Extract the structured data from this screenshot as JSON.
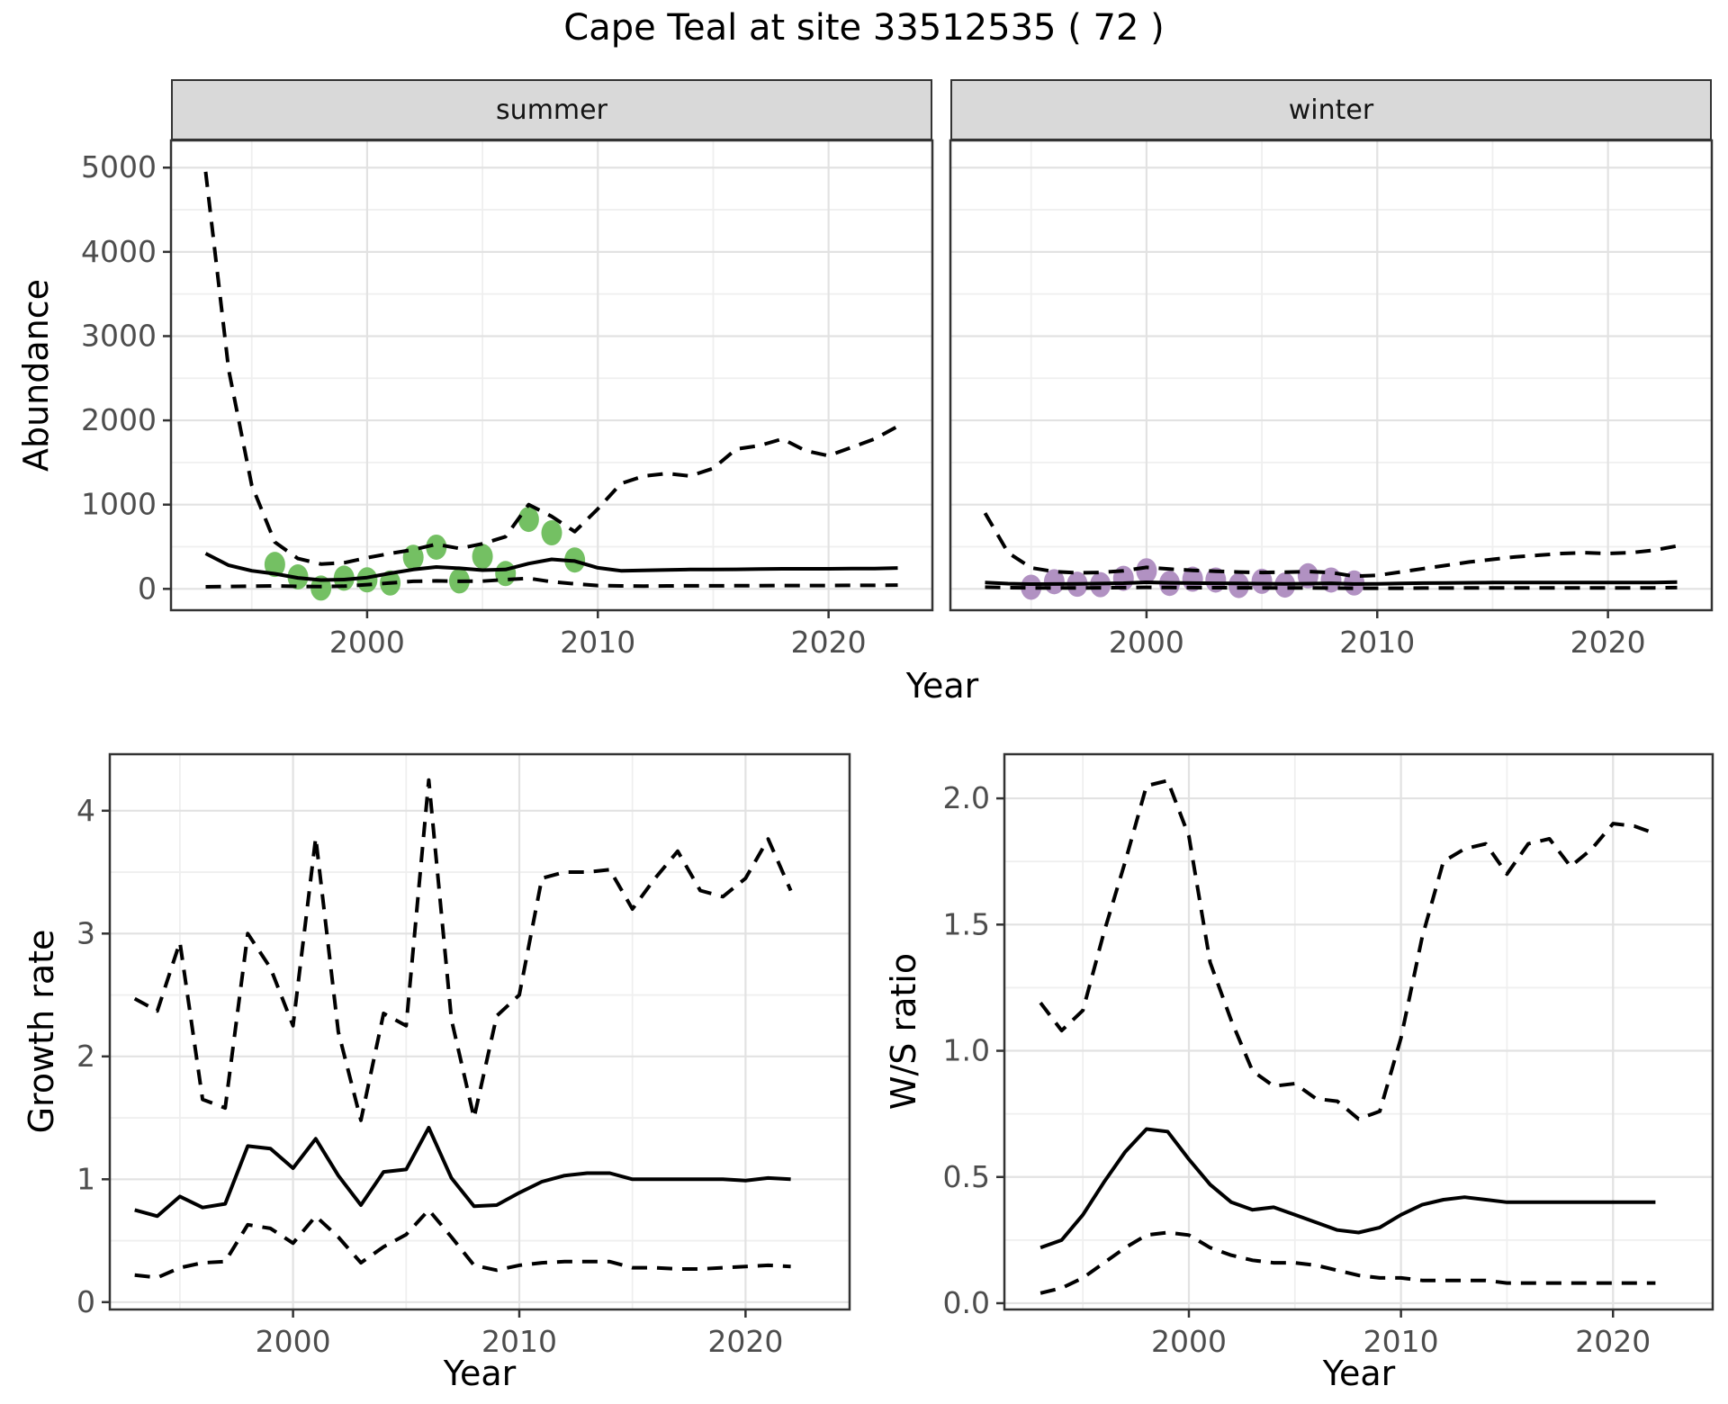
{
  "title": "Cape Teal at site 33512535 ( 72 )",
  "facets": [
    {
      "label": "summer"
    },
    {
      "label": "winter"
    }
  ],
  "axis_titles": {
    "abundance": "Abundance",
    "year": "Year",
    "growth": "Growth rate",
    "ws": "W/S ratio"
  },
  "colors": {
    "summer_points": "#74C063",
    "winter_points": "#B191C2",
    "line": "#000000",
    "panel_border": "#333333",
    "strip_bg": "#D9D9D9",
    "grid_major": "#E2E2E2",
    "grid_minor": "#EFEFEF",
    "tick_text": "#4D4D4D"
  },
  "chart_data": [
    {
      "id": "abundance-summer",
      "type": "line",
      "facet": "summer",
      "title": "summer",
      "xlabel": "Year",
      "ylabel": "Abundance",
      "xlim": [
        1991.5,
        2024.5
      ],
      "ylim": [
        -253,
        5323
      ],
      "xticks": [
        2000,
        2010,
        2020
      ],
      "xtick_labels": [
        "2000",
        "2010",
        "2020"
      ],
      "yticks": [
        0,
        1000,
        2000,
        3000,
        4000,
        5000
      ],
      "ytick_labels": [
        "0",
        "1000",
        "2000",
        "3000",
        "4000",
        "5000"
      ],
      "x_minor": [
        1995,
        2005,
        2015
      ],
      "y_minor": [
        500,
        1500,
        2500,
        3500,
        4500
      ],
      "grid": true,
      "legend": "none",
      "x": [
        1993,
        1994,
        1995,
        1996,
        1997,
        1998,
        1999,
        2000,
        2001,
        2002,
        2003,
        2004,
        2005,
        2006,
        2007,
        2008,
        2009,
        2010,
        2011,
        2012,
        2013,
        2014,
        2015,
        2016,
        2017,
        2018,
        2019,
        2020,
        2021,
        2022,
        2023
      ],
      "series": [
        {
          "name": "mean",
          "style": "solid",
          "values": [
            420,
            280,
            215,
            180,
            130,
            105,
            110,
            135,
            185,
            230,
            260,
            245,
            222,
            230,
            300,
            350,
            330,
            250,
            215,
            220,
            225,
            230,
            230,
            232,
            235,
            238,
            238,
            238,
            240,
            240,
            248
          ]
        },
        {
          "name": "upper_ci",
          "style": "dashed",
          "values": [
            4950,
            2600,
            1230,
            555,
            360,
            295,
            310,
            370,
            420,
            465,
            530,
            480,
            535,
            620,
            1000,
            860,
            680,
            950,
            1250,
            1340,
            1370,
            1340,
            1430,
            1660,
            1700,
            1780,
            1640,
            1580,
            1680,
            1780,
            1930
          ]
        },
        {
          "name": "lower_ci",
          "style": "dashed",
          "values": [
            25,
            28,
            32,
            35,
            30,
            28,
            32,
            50,
            70,
            90,
            95,
            90,
            92,
            110,
            125,
            85,
            60,
            40,
            35,
            33,
            35,
            36,
            36,
            38,
            38,
            40,
            40,
            40,
            42,
            42,
            45
          ]
        }
      ],
      "points": {
        "color_key": "summer_points",
        "x": [
          1996,
          1997,
          1998,
          1999,
          2000,
          2001,
          2002,
          2003,
          2004,
          2005,
          2006,
          2007,
          2008,
          2009
        ],
        "y": [
          290,
          142,
          10,
          127,
          107,
          70,
          375,
          495,
          95,
          385,
          182,
          825,
          665,
          343
        ]
      }
    },
    {
      "id": "abundance-winter",
      "type": "line",
      "facet": "winter",
      "title": "winter",
      "xlabel": "Year",
      "ylabel": "Abundance",
      "xlim": [
        1991.5,
        2024.5
      ],
      "ylim": [
        -253,
        5323
      ],
      "xticks": [
        2000,
        2010,
        2020
      ],
      "xtick_labels": [
        "2000",
        "2010",
        "2020"
      ],
      "yticks": [
        0,
        1000,
        2000,
        3000,
        4000,
        5000
      ],
      "ytick_labels": [
        "0",
        "1000",
        "2000",
        "3000",
        "4000",
        "5000"
      ],
      "x_minor": [
        1995,
        2005,
        2015
      ],
      "y_minor": [
        500,
        1500,
        2500,
        3500,
        4500
      ],
      "grid": true,
      "legend": "none",
      "x": [
        1993,
        1994,
        1995,
        1996,
        1997,
        1998,
        1999,
        2000,
        2001,
        2002,
        2003,
        2004,
        2005,
        2006,
        2007,
        2008,
        2009,
        2010,
        2011,
        2012,
        2013,
        2014,
        2015,
        2016,
        2017,
        2018,
        2019,
        2020,
        2021,
        2022,
        2023
      ],
      "series": [
        {
          "name": "mean",
          "style": "solid",
          "values": [
            75,
            62,
            57,
            58,
            60,
            63,
            67,
            78,
            72,
            68,
            66,
            64,
            62,
            60,
            62,
            66,
            58,
            60,
            64,
            68,
            71,
            73,
            75,
            75,
            76,
            76,
            76,
            76,
            76,
            76,
            80
          ]
        },
        {
          "name": "upper_ci",
          "style": "dashed",
          "values": [
            900,
            430,
            250,
            205,
            190,
            195,
            215,
            255,
            235,
            220,
            210,
            200,
            195,
            198,
            205,
            195,
            150,
            160,
            200,
            240,
            280,
            320,
            350,
            380,
            400,
            420,
            430,
            420,
            430,
            460,
            510
          ]
        },
        {
          "name": "lower_ci",
          "style": "dashed",
          "values": [
            20,
            14,
            12,
            11,
            11,
            13,
            15,
            18,
            16,
            15,
            14,
            13,
            12,
            12,
            12,
            10,
            8,
            8,
            8,
            10,
            10,
            12,
            12,
            12,
            12,
            12,
            12,
            12,
            12,
            12,
            15
          ]
        }
      ],
      "points": {
        "color_key": "winter_points",
        "x": [
          1995,
          1996,
          1997,
          1998,
          1999,
          2000,
          2001,
          2002,
          2003,
          2004,
          2005,
          2006,
          2007,
          2008,
          2009
        ],
        "y": [
          20,
          85,
          55,
          50,
          125,
          215,
          65,
          115,
          105,
          40,
          90,
          45,
          155,
          105,
          70
        ]
      }
    },
    {
      "id": "growth-rate",
      "type": "line",
      "xlabel": "Year",
      "ylabel": "Growth rate",
      "xlim": [
        1991.9,
        2024.6
      ],
      "ylim": [
        -0.06,
        4.46
      ],
      "xticks": [
        2000,
        2010,
        2020
      ],
      "xtick_labels": [
        "2000",
        "2010",
        "2020"
      ],
      "yticks": [
        0,
        1,
        2,
        3,
        4
      ],
      "ytick_labels": [
        "0",
        "1",
        "2",
        "3",
        "4"
      ],
      "x_minor": [
        1995,
        2005,
        2015
      ],
      "y_minor": [
        0.5,
        1.5,
        2.5,
        3.5
      ],
      "grid": true,
      "legend": "none",
      "x": [
        1993,
        1994,
        1995,
        1996,
        1997,
        1998,
        1999,
        2000,
        2001,
        2002,
        2003,
        2004,
        2005,
        2006,
        2007,
        2008,
        2009,
        2010,
        2011,
        2012,
        2013,
        2014,
        2015,
        2016,
        2017,
        2018,
        2019,
        2020,
        2021,
        2022
      ],
      "series": [
        {
          "name": "mean",
          "style": "solid",
          "values": [
            0.75,
            0.7,
            0.86,
            0.77,
            0.8,
            1.27,
            1.25,
            1.09,
            1.33,
            1.03,
            0.79,
            1.06,
            1.08,
            1.42,
            1.01,
            0.78,
            0.79,
            0.89,
            0.98,
            1.03,
            1.05,
            1.05,
            1.0,
            1.0,
            1.0,
            1.0,
            1.0,
            0.99,
            1.01,
            1.0
          ]
        },
        {
          "name": "upper_ci",
          "style": "dashed",
          "values": [
            2.47,
            2.37,
            2.93,
            1.65,
            1.58,
            3.0,
            2.72,
            2.25,
            3.78,
            2.2,
            1.48,
            2.35,
            2.25,
            4.25,
            2.3,
            1.5,
            2.33,
            2.5,
            3.45,
            3.5,
            3.5,
            3.52,
            3.2,
            3.45,
            3.67,
            3.35,
            3.3,
            3.45,
            3.77,
            3.35
          ]
        },
        {
          "name": "lower_ci",
          "style": "dashed",
          "values": [
            0.22,
            0.2,
            0.28,
            0.32,
            0.33,
            0.63,
            0.6,
            0.48,
            0.7,
            0.53,
            0.32,
            0.45,
            0.55,
            0.75,
            0.53,
            0.3,
            0.26,
            0.3,
            0.32,
            0.33,
            0.33,
            0.33,
            0.28,
            0.28,
            0.27,
            0.27,
            0.28,
            0.29,
            0.3,
            0.29
          ]
        }
      ]
    },
    {
      "id": "ws-ratio",
      "type": "line",
      "xlabel": "Year",
      "ylabel": "W/S ratio",
      "xlim": [
        1991.3,
        2024.7
      ],
      "ylim": [
        -0.025,
        2.175
      ],
      "xticks": [
        2000,
        2010,
        2020
      ],
      "xtick_labels": [
        "2000",
        "2010",
        "2020"
      ],
      "yticks": [
        0,
        0.5,
        1.0,
        1.5,
        2.0
      ],
      "ytick_labels": [
        "0.0",
        "0.5",
        "1.0",
        "1.5",
        "2.0"
      ],
      "x_minor": [
        1995,
        2005,
        2015
      ],
      "y_minor": [
        0.25,
        0.75,
        1.25,
        1.75
      ],
      "grid": true,
      "legend": "none",
      "x": [
        1993,
        1994,
        1995,
        1996,
        1997,
        1998,
        1999,
        2000,
        2001,
        2002,
        2003,
        2004,
        2005,
        2006,
        2007,
        2008,
        2009,
        2010,
        2011,
        2012,
        2013,
        2014,
        2015,
        2016,
        2017,
        2018,
        2019,
        2020,
        2021,
        2022
      ],
      "series": [
        {
          "name": "mean",
          "style": "solid",
          "values": [
            0.22,
            0.25,
            0.35,
            0.48,
            0.6,
            0.69,
            0.68,
            0.57,
            0.47,
            0.4,
            0.37,
            0.38,
            0.35,
            0.32,
            0.29,
            0.28,
            0.3,
            0.35,
            0.39,
            0.41,
            0.42,
            0.41,
            0.4,
            0.4,
            0.4,
            0.4,
            0.4,
            0.4,
            0.4,
            0.4
          ]
        },
        {
          "name": "upper_ci",
          "style": "dashed",
          "values": [
            1.19,
            1.08,
            1.16,
            1.47,
            1.75,
            2.05,
            2.07,
            1.85,
            1.35,
            1.12,
            0.92,
            0.86,
            0.87,
            0.81,
            0.8,
            0.73,
            0.76,
            1.05,
            1.45,
            1.75,
            1.8,
            1.82,
            1.7,
            1.82,
            1.84,
            1.73,
            1.8,
            1.9,
            1.89,
            1.86
          ]
        },
        {
          "name": "lower_ci",
          "style": "dashed",
          "values": [
            0.04,
            0.06,
            0.1,
            0.16,
            0.22,
            0.27,
            0.28,
            0.27,
            0.22,
            0.19,
            0.17,
            0.16,
            0.16,
            0.15,
            0.13,
            0.11,
            0.1,
            0.1,
            0.09,
            0.09,
            0.09,
            0.09,
            0.08,
            0.08,
            0.08,
            0.08,
            0.08,
            0.08,
            0.08,
            0.08
          ]
        }
      ]
    }
  ]
}
